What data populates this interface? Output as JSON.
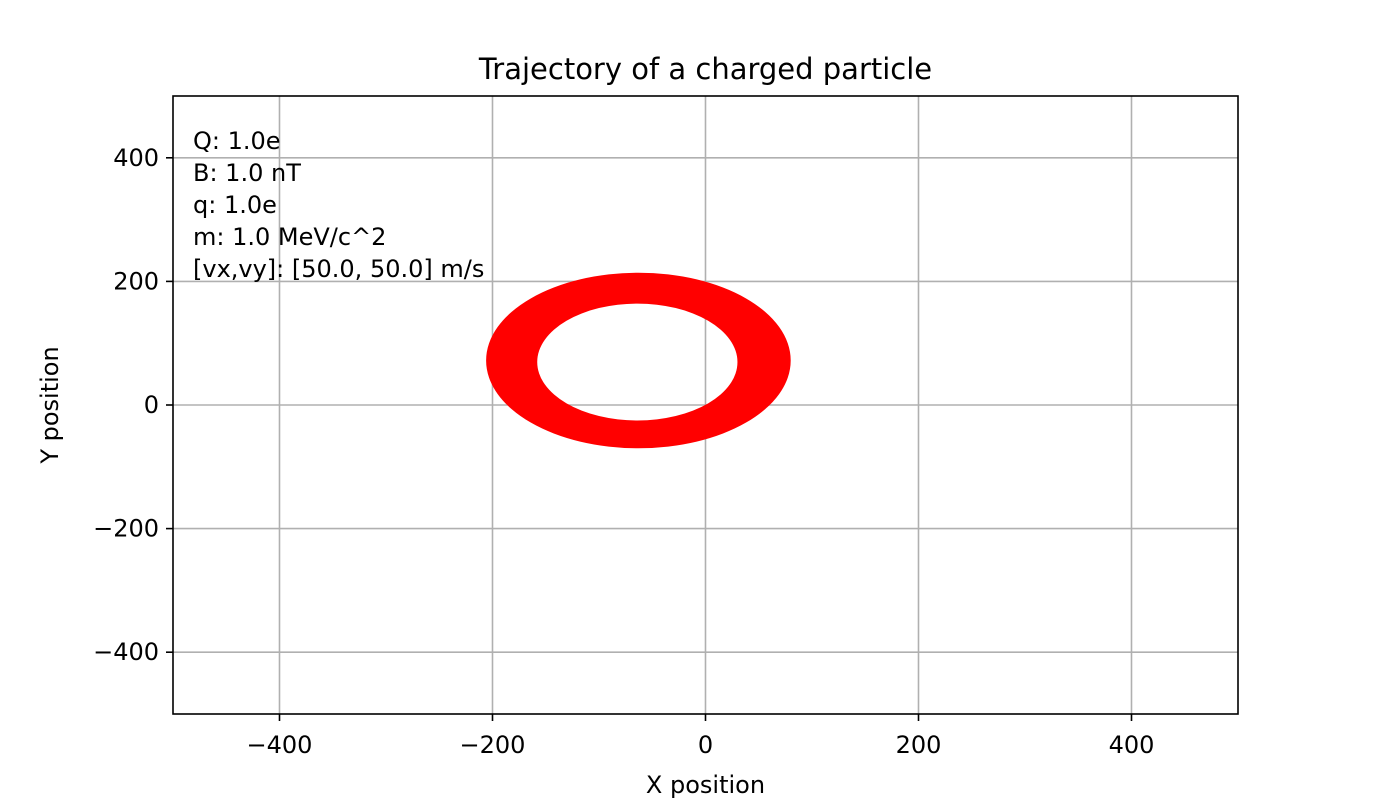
{
  "chart_data": {
    "type": "line",
    "title": "Trajectory of a charged particle",
    "xlabel": "X position",
    "ylabel": "Y position",
    "xlim": [
      -500,
      500
    ],
    "ylim": [
      -500,
      500
    ],
    "xticks": [
      -400,
      -200,
      0,
      200,
      400
    ],
    "yticks": [
      -400,
      -200,
      0,
      200,
      400
    ],
    "xtick_labels": [
      "−400",
      "−200",
      "0",
      "200",
      "400"
    ],
    "ytick_labels": [
      "−400",
      "−200",
      "0",
      "200",
      "400"
    ],
    "grid": true,
    "annotations": [
      "Q: 1.0e",
      "B: 1.0 nT",
      "q: 1.0e",
      "m: 1.0 MeV/c^2",
      "[vx,vy]: [50.0, 50.0] m/s"
    ],
    "series": [
      {
        "color": "#ff0000",
        "trajectory": {
          "shape": "drifting-ellipse-band",
          "outer_x_range": [
            -206,
            80
          ],
          "outer_y_range": [
            -70,
            214
          ],
          "inner_x_range": [
            -158,
            30
          ],
          "inner_y_range": [
            -25,
            164
          ],
          "center_start": [
            -68,
            68
          ],
          "center_end": [
            -64,
            74
          ],
          "start_point": [
            -190,
            0
          ]
        }
      }
    ]
  }
}
